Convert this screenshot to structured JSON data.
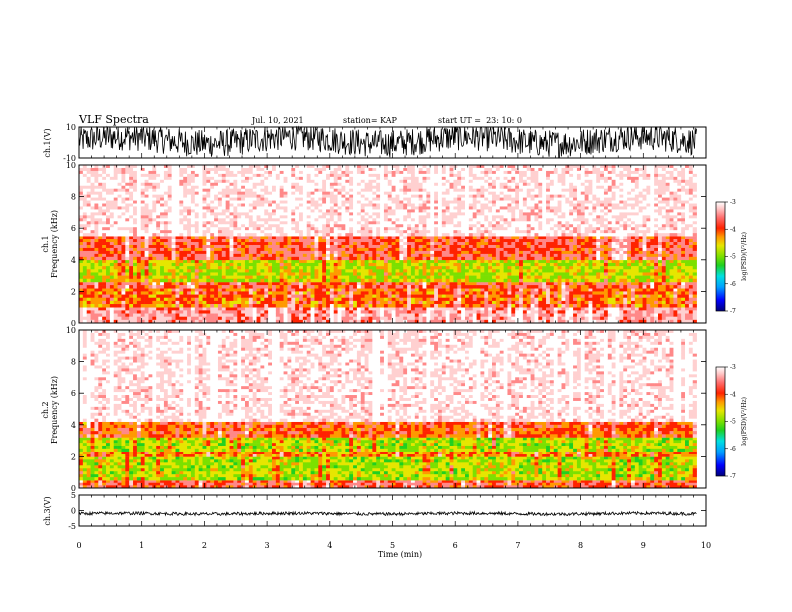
{
  "header": {
    "title": "VLF Spectra",
    "date": "Jul. 10, 2021",
    "station": "station= KAP",
    "start": "start UT =  23: 10: 0"
  },
  "colors": {
    "colormap": [
      "#00007a",
      "#0000ff",
      "#00a0ff",
      "#00e0e0",
      "#20d020",
      "#7be000",
      "#e6e600",
      "#ff9900",
      "#ff2200",
      "#ff8888",
      "#ffd0d0",
      "#ffffff"
    ],
    "waveform": "#000000"
  },
  "chart_data": [
    {
      "type": "line",
      "panel": "ch1-waveform",
      "ylabel": "ch.1(V)",
      "ylim": [
        -10,
        10
      ],
      "yticks": [
        "10",
        "-10"
      ],
      "xlim": [
        0,
        9.85
      ],
      "description_level": "dense noise filling most of the range, roughly -8 to +10 V"
    },
    {
      "type": "heatmap",
      "panel": "ch1-spectrogram",
      "ylabel": "ch.1\nFrequency (kHz)",
      "ylim": [
        0,
        10
      ],
      "yticks": [
        "0",
        "2",
        "4",
        "6",
        "8",
        "10"
      ],
      "xlim": [
        0,
        9.85
      ],
      "bands": [
        {
          "f_low": 0.0,
          "f_high": 1.0,
          "level": -3.6
        },
        {
          "f_low": 1.0,
          "f_high": 2.2,
          "level": -4.3
        },
        {
          "f_low": 2.2,
          "f_high": 2.6,
          "level": -4.0
        },
        {
          "f_low": 2.6,
          "f_high": 4.0,
          "level": -4.9
        },
        {
          "f_low": 4.0,
          "f_high": 5.5,
          "level": -4.0
        },
        {
          "f_low": 5.5,
          "f_high": 10.0,
          "level": -3.2
        }
      ]
    },
    {
      "type": "heatmap",
      "panel": "ch2-spectrogram",
      "ylabel": "ch.2\nFrequency (kHz)",
      "ylim": [
        0,
        10
      ],
      "yticks": [
        "0",
        "2",
        "4",
        "6",
        "8",
        "10"
      ],
      "xlim": [
        0,
        9.85
      ],
      "bands": [
        {
          "f_low": 0.0,
          "f_high": 0.5,
          "level": -4.0
        },
        {
          "f_low": 0.5,
          "f_high": 2.0,
          "level": -5.0
        },
        {
          "f_low": 2.0,
          "f_high": 2.3,
          "level": -4.4
        },
        {
          "f_low": 2.3,
          "f_high": 3.2,
          "level": -5.0
        },
        {
          "f_low": 3.2,
          "f_high": 4.2,
          "level": -4.2
        },
        {
          "f_low": 4.2,
          "f_high": 10.0,
          "level": -3.2
        }
      ]
    },
    {
      "type": "line",
      "panel": "ch3-waveform",
      "ylabel": "ch.3(V)",
      "ylim": [
        -5,
        5
      ],
      "yticks": [
        "5",
        "0",
        "-5"
      ],
      "xlim": [
        0,
        9.85
      ],
      "description_level": "flat trace near -1 V with small noise"
    }
  ],
  "time_axis": {
    "label": "Time (min)",
    "range": [
      0,
      10
    ],
    "ticks": [
      "0",
      "1",
      "2",
      "3",
      "4",
      "5",
      "6",
      "7",
      "8",
      "9",
      "10"
    ]
  },
  "colorbars": [
    {
      "label": "log(PSD)(V²/Hz)",
      "range": [
        -7,
        -3
      ],
      "ticks": [
        "-3",
        "-4",
        "-5",
        "-6",
        "-7"
      ]
    },
    {
      "label": "log(PSD)(V²/Hz)",
      "range": [
        -7,
        -3
      ],
      "ticks": [
        "-3",
        "-4",
        "-5",
        "-6",
        "-7"
      ]
    }
  ]
}
